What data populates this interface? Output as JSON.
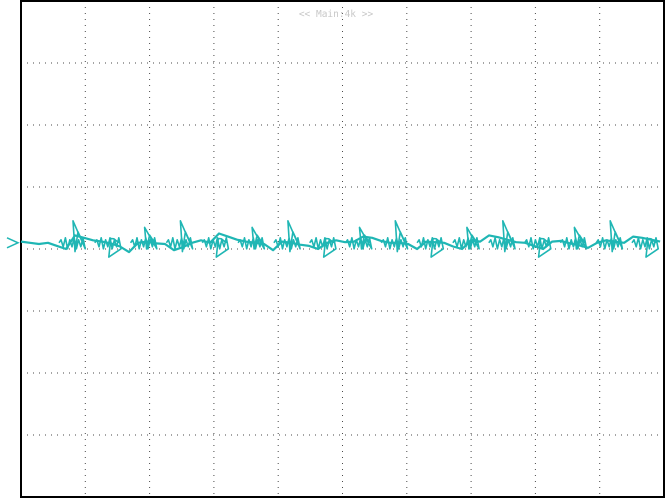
{
  "header": {
    "label": "<< Main:4k >>"
  },
  "colors": {
    "background": "#ffffff",
    "frame": "#000000",
    "grid": "#4a4a4a",
    "trace": "#1fb6b4",
    "header_text": "#c8c8c8"
  },
  "chart_data": {
    "type": "line",
    "title": "",
    "xlabel": "",
    "ylabel": "",
    "grid": true,
    "grid_divisions": {
      "x": 10,
      "y": 8
    },
    "xlim": [
      0,
      10
    ],
    "ylim": [
      -4,
      4
    ],
    "baseline_level_div": 0.1,
    "spike_count": 17,
    "series": [
      {
        "x": [
          0.0,
          0.14,
          0.28,
          0.42,
          0.56,
          0.7,
          0.84,
          0.98,
          1.12,
          1.26,
          1.4,
          1.54,
          1.68,
          1.82,
          1.96,
          2.1,
          2.24,
          2.38,
          2.52,
          2.66,
          2.8,
          2.94,
          3.08,
          3.22,
          3.36,
          3.5,
          3.64,
          3.78,
          3.92,
          4.06,
          4.2,
          4.34,
          4.48,
          4.62,
          4.76,
          4.9,
          5.04,
          5.18,
          5.32,
          5.46,
          5.6,
          5.74,
          5.88,
          6.02,
          6.16,
          6.3,
          6.44,
          6.58,
          6.72,
          6.86,
          7.0,
          7.14,
          7.28,
          7.42,
          7.56,
          7.7,
          7.84,
          7.98,
          8.12,
          8.26,
          8.4,
          8.54,
          8.68,
          8.82,
          8.96,
          9.1,
          9.24,
          9.38,
          9.52,
          9.66,
          9.8,
          9.94
        ],
        "y": [
          0.12,
          0.1,
          0.08,
          0.1,
          0.05,
          0.0,
          0.22,
          0.18,
          0.14,
          0.12,
          0.09,
          0.04,
          -0.05,
          0.1,
          0.12,
          0.09,
          0.08,
          -0.02,
          0.03,
          0.1,
          0.14,
          0.1,
          0.25,
          0.2,
          0.15,
          0.12,
          0.1,
          0.08,
          -0.02,
          0.12,
          0.1,
          0.07,
          0.05,
          0.0,
          0.1,
          0.14,
          0.11,
          0.12,
          0.2,
          0.18,
          0.13,
          0.1,
          0.1,
          0.08,
          0.0,
          0.12,
          0.11,
          0.1,
          0.04,
          0.0,
          0.14,
          0.12,
          0.22,
          0.19,
          0.15,
          0.11,
          0.1,
          0.05,
          0.0,
          0.12,
          0.13,
          0.09,
          0.06,
          0.02,
          0.1,
          0.14,
          0.12,
          0.1,
          0.2,
          0.18,
          0.15,
          0.12
        ]
      }
    ]
  }
}
